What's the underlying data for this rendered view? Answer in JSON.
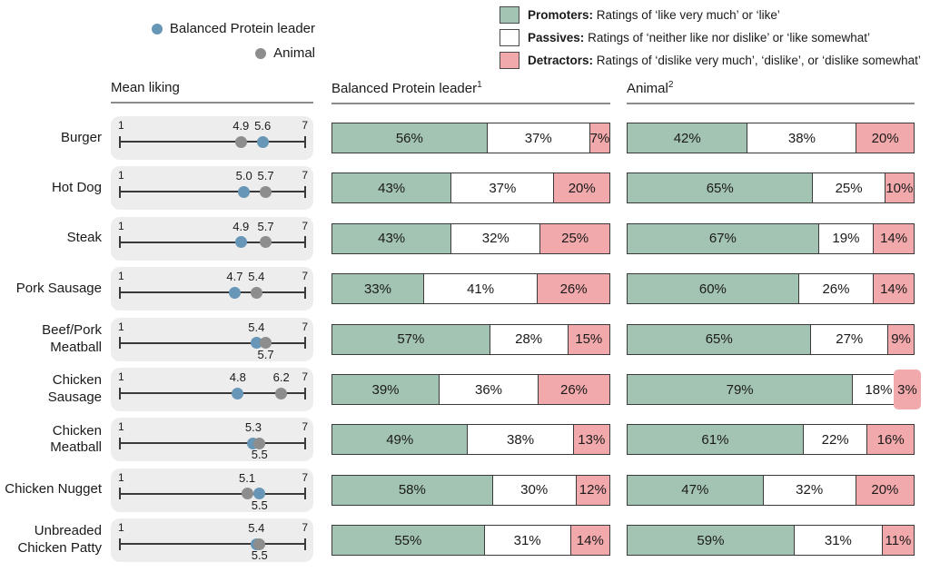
{
  "dot_legend": {
    "items": [
      {
        "label": "Balanced Protein leader",
        "series": "bpl"
      },
      {
        "label": "Animal",
        "series": "animal"
      }
    ]
  },
  "segment_legend": {
    "items": [
      {
        "term": "Promoters:",
        "desc": "Ratings of ‘like very much’ or ‘like’",
        "key": "promoters"
      },
      {
        "term": "Passives:",
        "desc": "Ratings of ‘neither like nor dislike’ or ‘like somewhat’",
        "key": "passives"
      },
      {
        "term": "Detractors:",
        "desc": "Ratings of ‘dislike very much’, ‘dislike’, or ‘dislike somewhat’",
        "key": "detractors"
      }
    ]
  },
  "column_headers": {
    "mean": "Mean liking",
    "bpl": "Balanced Protein leader",
    "bpl_footnote": "1",
    "animal": "Animal",
    "animal_footnote": "2"
  },
  "colors": {
    "promoters": "#a3c4b2",
    "passives": "#ffffff",
    "detractors": "#f2a9ac",
    "bpl_dot": "#6896b6",
    "animal_dot": "#8d8d8d",
    "panel_bg": "#ededed",
    "bar_border": "#3a3a3a"
  },
  "chart_data": {
    "type": "bar",
    "subtype": "100pct-horizontal-stacked bars (two panels) plus mean-liking dot plot",
    "scale": {
      "min": "1",
      "max": "7"
    },
    "legend_position": "top",
    "categories": [
      "Burger",
      "Hot Dog",
      "Steak",
      "Pork Sausage",
      "Beef/Pork Meatball",
      "Chicken Sausage",
      "Chicken Meatball",
      "Chicken Nugget",
      "Unbreaded Chicken Patty"
    ],
    "rows": [
      {
        "label": "Burger",
        "mean": {
          "bpl": {
            "value": 5.6,
            "text": "5.6",
            "label_pos": "top"
          },
          "animal": {
            "value": 4.9,
            "text": "4.9",
            "label_pos": "top"
          }
        },
        "bpl": {
          "promoters": 56,
          "passives": 37,
          "detractors": 7
        },
        "animal": {
          "promoters": 42,
          "passives": 38,
          "detractors": 20
        }
      },
      {
        "label": "Hot Dog",
        "mean": {
          "bpl": {
            "value": 5.0,
            "text": "5.0",
            "label_pos": "top"
          },
          "animal": {
            "value": 5.7,
            "text": "5.7",
            "label_pos": "top"
          }
        },
        "bpl": {
          "promoters": 43,
          "passives": 37,
          "detractors": 20
        },
        "animal": {
          "promoters": 65,
          "passives": 25,
          "detractors": 10
        }
      },
      {
        "label": "Steak",
        "mean": {
          "bpl": {
            "value": 4.9,
            "text": "4.9",
            "label_pos": "top"
          },
          "animal": {
            "value": 5.7,
            "text": "5.7",
            "label_pos": "top"
          }
        },
        "bpl": {
          "promoters": 43,
          "passives": 32,
          "detractors": 25
        },
        "animal": {
          "promoters": 67,
          "passives": 19,
          "detractors": 14
        }
      },
      {
        "label": "Pork Sausage",
        "mean": {
          "bpl": {
            "value": 4.7,
            "text": "4.7",
            "label_pos": "top"
          },
          "animal": {
            "value": 5.4,
            "text": "5.4",
            "label_pos": "top"
          }
        },
        "bpl": {
          "promoters": 33,
          "passives": 41,
          "detractors": 26
        },
        "animal": {
          "promoters": 60,
          "passives": 26,
          "detractors": 14
        }
      },
      {
        "label": "Beef/Pork Meatball",
        "mean": {
          "bpl": {
            "value": 5.4,
            "text": "5.4",
            "label_pos": "top"
          },
          "animal": {
            "value": 5.7,
            "text": "5.7",
            "label_pos": "bottom"
          }
        },
        "bpl": {
          "promoters": 57,
          "passives": 28,
          "detractors": 15
        },
        "animal": {
          "promoters": 65,
          "passives": 27,
          "detractors": 9
        }
      },
      {
        "label": "Chicken Sausage",
        "mean": {
          "bpl": {
            "value": 4.8,
            "text": "4.8",
            "label_pos": "top"
          },
          "animal": {
            "value": 6.2,
            "text": "6.2",
            "label_pos": "top"
          }
        },
        "bpl": {
          "promoters": 39,
          "passives": 36,
          "detractors": 26
        },
        "animal": {
          "promoters": 79,
          "passives": 18,
          "detractors": 3
        }
      },
      {
        "label": "Chicken Meatball",
        "mean": {
          "bpl": {
            "value": 5.3,
            "text": "5.3",
            "label_pos": "top"
          },
          "animal": {
            "value": 5.5,
            "text": "5.5",
            "label_pos": "bottom"
          }
        },
        "bpl": {
          "promoters": 49,
          "passives": 38,
          "detractors": 13
        },
        "animal": {
          "promoters": 61,
          "passives": 22,
          "detractors": 16
        }
      },
      {
        "label": "Chicken Nugget",
        "mean": {
          "bpl": {
            "value": 5.5,
            "text": "5.5",
            "label_pos": "bottom"
          },
          "animal": {
            "value": 5.1,
            "text": "5.1",
            "label_pos": "top"
          }
        },
        "bpl": {
          "promoters": 58,
          "passives": 30,
          "detractors": 12
        },
        "animal": {
          "promoters": 47,
          "passives": 32,
          "detractors": 20
        }
      },
      {
        "label": "Unbreaded Chicken Patty",
        "mean": {
          "bpl": {
            "value": 5.4,
            "text": "5.4",
            "label_pos": "top"
          },
          "animal": {
            "value": 5.5,
            "text": "5.5",
            "label_pos": "bottom"
          }
        },
        "bpl": {
          "promoters": 55,
          "passives": 31,
          "detractors": 14
        },
        "animal": {
          "promoters": 59,
          "passives": 31,
          "detractors": 11
        }
      }
    ]
  }
}
